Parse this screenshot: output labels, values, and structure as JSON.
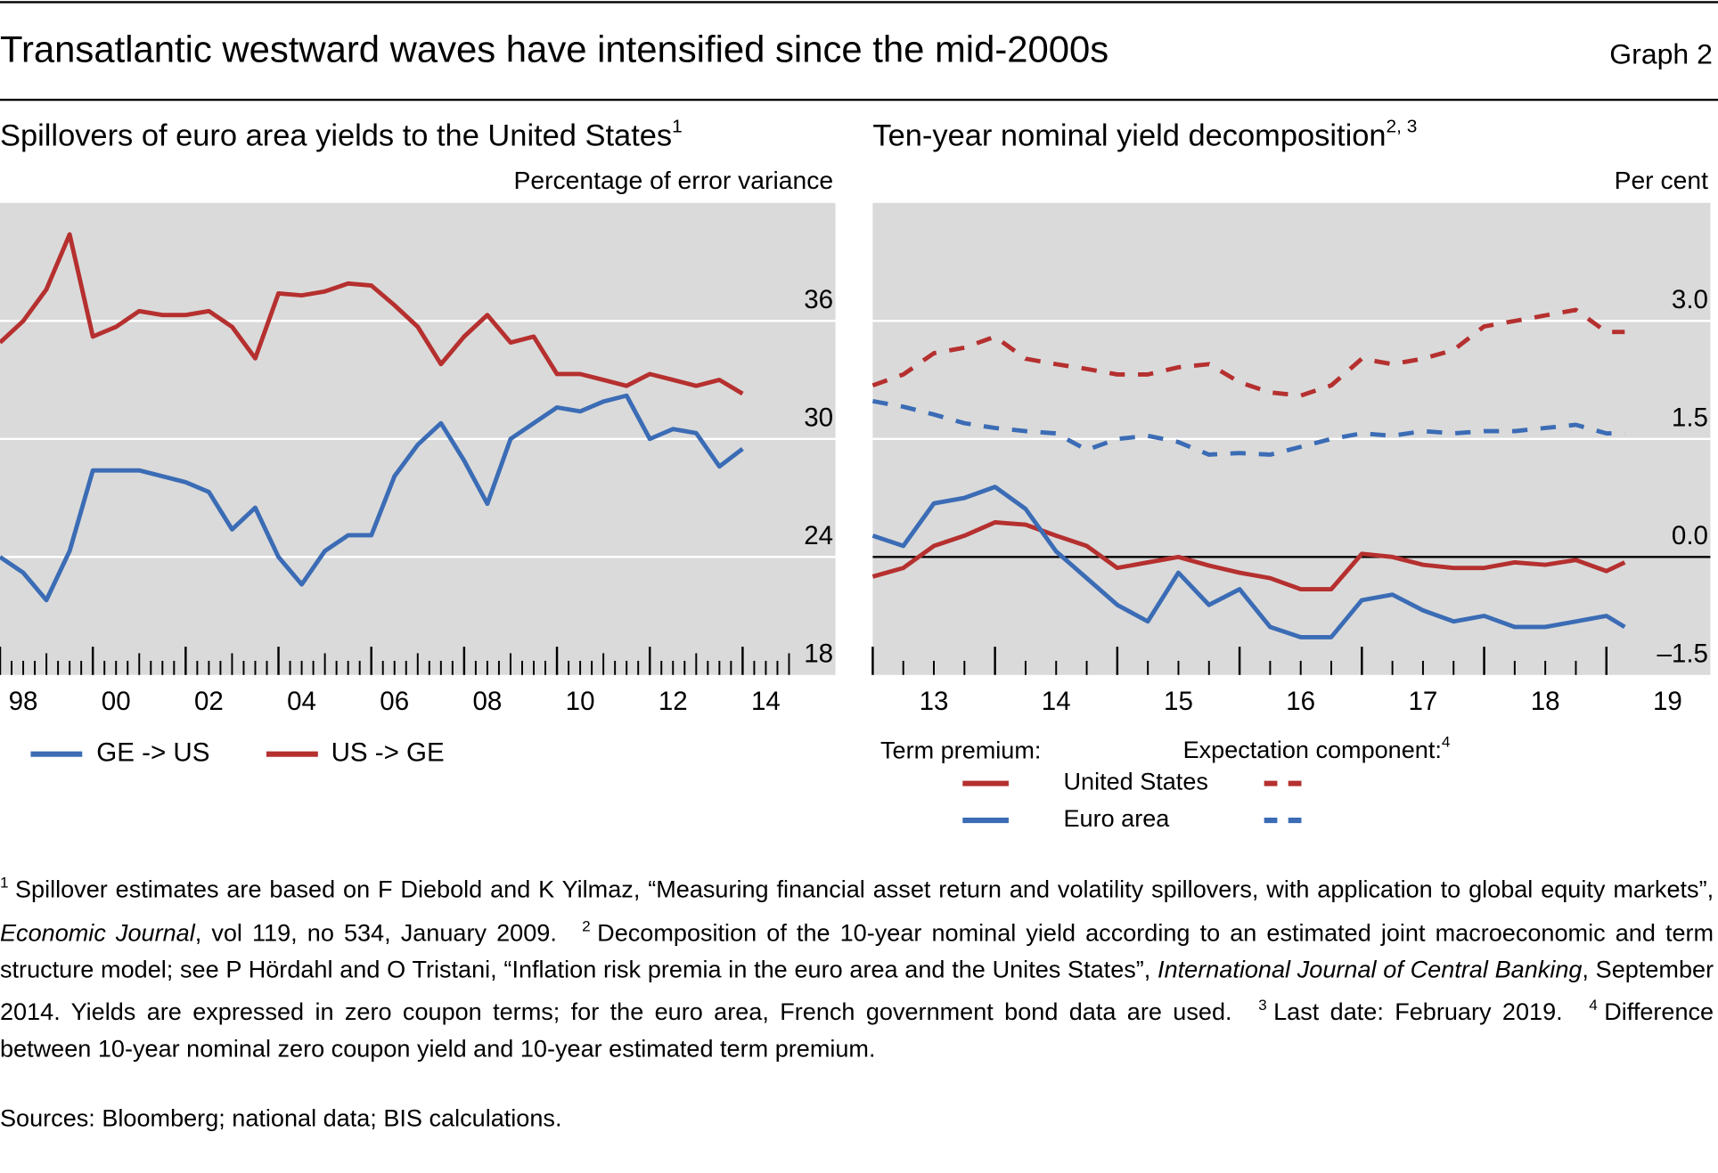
{
  "header": {
    "title": "Transatlantic westward waves have intensified since the mid-2000s",
    "graph_label": "Graph 2"
  },
  "chart_data": [
    {
      "type": "line",
      "title": "Spillovers of euro area yields to the United States",
      "title_note": "1",
      "y_label": "Percentage of error variance",
      "x": [
        1998,
        1998.5,
        1999,
        1999.5,
        2000,
        2000.5,
        2001,
        2001.5,
        2002,
        2002.5,
        2003,
        2003.5,
        2004,
        2004.5,
        2005,
        2005.5,
        2006,
        2006.5,
        2007,
        2007.5,
        2008,
        2008.5,
        2009,
        2009.5,
        2010,
        2010.5,
        2011,
        2011.5,
        2012,
        2012.5,
        2013,
        2013.5,
        2014
      ],
      "series": [
        {
          "name": "GE -> US",
          "color": "#3b6cb5",
          "values": [
            24,
            23.2,
            21.8,
            24.3,
            28.4,
            28.4,
            28.4,
            28.1,
            27.8,
            27.3,
            25.4,
            26.5,
            24,
            22.6,
            24.3,
            25.1,
            25.1,
            28.1,
            29.7,
            30.8,
            28.9,
            26.7,
            30,
            30.8,
            31.6,
            31.4,
            31.9,
            32.2,
            30,
            30.5,
            30.3,
            28.6,
            29.5
          ]
        },
        {
          "name": "US -> GE",
          "color": "#b5302f",
          "values": [
            34.9,
            36,
            37.6,
            40.4,
            35.2,
            35.7,
            36.5,
            36.3,
            36.3,
            36.5,
            35.7,
            34.1,
            37.4,
            37.3,
            37.5,
            37.9,
            37.8,
            36.8,
            35.7,
            33.8,
            35.2,
            36.3,
            34.9,
            35.2,
            33.3,
            33.3,
            33,
            32.7,
            33.3,
            33,
            32.7,
            33,
            32.3
          ]
        }
      ],
      "xlim": [
        1998,
        2016
      ],
      "xticks": [
        {
          "value": 1998,
          "label": "98"
        },
        {
          "value": 2000,
          "label": "00"
        },
        {
          "value": 2002,
          "label": "02"
        },
        {
          "value": 2004,
          "label": "04"
        },
        {
          "value": 2006,
          "label": "06"
        },
        {
          "value": 2008,
          "label": "08"
        },
        {
          "value": 2010,
          "label": "10"
        },
        {
          "value": 2012,
          "label": "12"
        },
        {
          "value": 2014,
          "label": "14"
        }
      ],
      "ylim": [
        18,
        42
      ],
      "yticks": [
        18,
        24,
        30,
        36
      ],
      "grid": true,
      "legend": "below"
    },
    {
      "type": "line",
      "title": "Ten-year nominal yield decomposition",
      "title_note": "2, 3",
      "y_label": "Per cent",
      "x": [
        2013,
        2013.25,
        2013.5,
        2013.75,
        2014,
        2014.25,
        2014.5,
        2014.75,
        2015,
        2015.25,
        2015.5,
        2015.75,
        2016,
        2016.25,
        2016.5,
        2016.75,
        2017,
        2017.25,
        2017.5,
        2017.75,
        2018,
        2018.25,
        2018.5,
        2018.75,
        2019,
        2019.15
      ],
      "legend_columns": [
        "Term premium:",
        "Expectation component:"
      ],
      "legend_column_note": "4",
      "series": [
        {
          "name": "United States",
          "color": "#b5302f",
          "dashed": false,
          "values": [
            -0.25,
            -0.14,
            0.14,
            0.27,
            0.44,
            0.41,
            0.27,
            0.14,
            -0.14,
            -0.07,
            0,
            -0.11,
            -0.2,
            -0.27,
            -0.41,
            -0.41,
            0.04,
            0,
            -0.1,
            -0.14,
            -0.14,
            -0.07,
            -0.1,
            -0.04,
            -0.18,
            -0.07
          ]
        },
        {
          "name": "Euro area",
          "color": "#3b6cb5",
          "dashed": false,
          "values": [
            0.27,
            0.14,
            0.68,
            0.75,
            0.89,
            0.61,
            0.07,
            -0.27,
            -0.61,
            -0.82,
            -0.2,
            -0.61,
            -0.41,
            -0.89,
            -1.02,
            -1.02,
            -0.55,
            -0.48,
            -0.68,
            -0.82,
            -0.75,
            -0.89,
            -0.89,
            -0.82,
            -0.75,
            -0.89
          ]
        },
        {
          "color": "#b5302f",
          "dashed": true,
          "values": [
            2.18,
            2.32,
            2.59,
            2.66,
            2.8,
            2.52,
            2.45,
            2.39,
            2.32,
            2.32,
            2.41,
            2.45,
            2.22,
            2.09,
            2.05,
            2.18,
            2.52,
            2.45,
            2.52,
            2.63,
            2.93,
            3.0,
            3.07,
            3.14,
            2.86,
            2.86
          ]
        },
        {
          "color": "#3b6cb5",
          "dashed": true,
          "values": [
            1.98,
            1.91,
            1.81,
            1.7,
            1.64,
            1.6,
            1.57,
            1.36,
            1.5,
            1.54,
            1.46,
            1.3,
            1.32,
            1.3,
            1.4,
            1.5,
            1.57,
            1.54,
            1.6,
            1.57,
            1.6,
            1.6,
            1.64,
            1.68,
            1.57,
            1.57
          ]
        }
      ],
      "xlim": [
        2013,
        2019.85
      ],
      "xticks": [
        {
          "value": 2013,
          "label": "13"
        },
        {
          "value": 2014,
          "label": "14"
        },
        {
          "value": 2015,
          "label": "15"
        },
        {
          "value": 2016,
          "label": "16"
        },
        {
          "value": 2017,
          "label": "17"
        },
        {
          "value": 2018,
          "label": "18"
        },
        {
          "value": 2019,
          "label": "19"
        }
      ],
      "ylim": [
        -1.5,
        4.5
      ],
      "yticks": [
        {
          "value": -1.5,
          "label": "–1.5"
        },
        {
          "value": 0,
          "label": "0.0"
        },
        {
          "value": 1.5,
          "label": "1.5"
        },
        {
          "value": 3,
          "label": "3.0"
        }
      ],
      "grid": true,
      "zero_line": true,
      "legend": "below"
    }
  ],
  "footnotes": [
    {
      "marker": "1",
      "parts": [
        {
          "text": "Spillover estimates are based on F Diebold and K Yilmaz, “Measuring financial asset return and volatility spillovers, with application to global equity markets”, "
        },
        {
          "text": "Economic Journal",
          "italic": true
        },
        {
          "text": ", vol 119, no 534, January 2009."
        }
      ]
    },
    {
      "marker": "2",
      "parts": [
        {
          "text": "Decomposition of the 10-year nominal yield according to an estimated joint macroeconomic and term structure model; see P Hördahl and O Tristani, “Inflation risk premia in the euro area and the Unites States”, "
        },
        {
          "text": "International Journal of Central Banking",
          "italic": true
        },
        {
          "text": ", September 2014. Yields are expressed in zero coupon terms; for the euro area, French government bond data are used."
        }
      ]
    },
    {
      "marker": "3",
      "parts": [
        {
          "text": "Last date: February 2019."
        }
      ]
    },
    {
      "marker": "4",
      "parts": [
        {
          "text": "Difference between 10-year nominal zero coupon yield and 10-year estimated term premium."
        }
      ]
    }
  ],
  "sources": "Sources: Bloomberg; national data; BIS calculations."
}
